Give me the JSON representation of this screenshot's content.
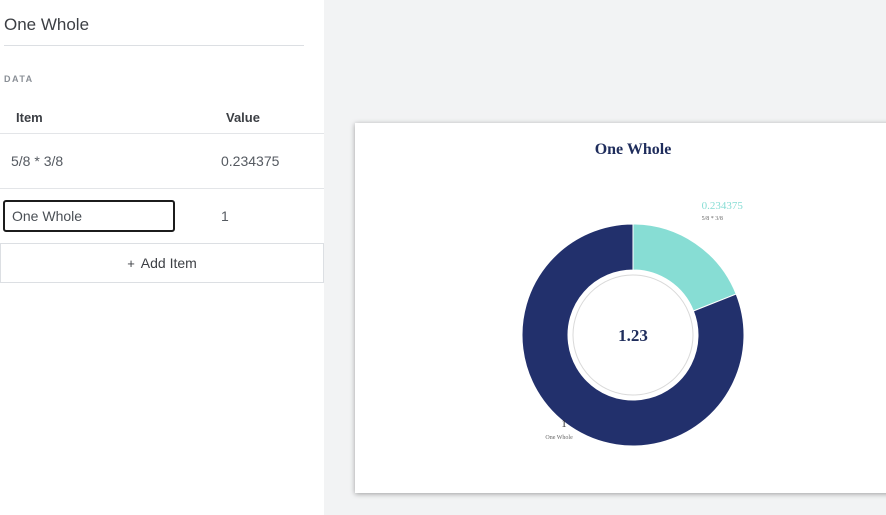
{
  "panel": {
    "title": "One Whole",
    "section_label": "DATA",
    "columns": {
      "item": "Item",
      "value": "Value"
    },
    "rows": [
      {
        "item": "5/8 * 3/8",
        "value": "0.234375"
      },
      {
        "item": "One Whole",
        "value": "1"
      }
    ],
    "add_item": {
      "icon": "plus-icon",
      "label": "Add Item"
    }
  },
  "chart_data": {
    "type": "pie",
    "variant": "donut",
    "title": "One Whole",
    "center_label": "1.23",
    "slices": [
      {
        "label": "5/8 * 3/8",
        "value": 0.234375,
        "value_label": "0.234375",
        "color": "#87ddd4"
      },
      {
        "label": "One Whole",
        "value": 1,
        "value_label": "1",
        "color": "#22306c"
      }
    ],
    "legend": "none"
  },
  "colors": {
    "title": "#1f2d5c",
    "panel_bg": "#ffffff",
    "page_bg": "#f2f3f4"
  }
}
